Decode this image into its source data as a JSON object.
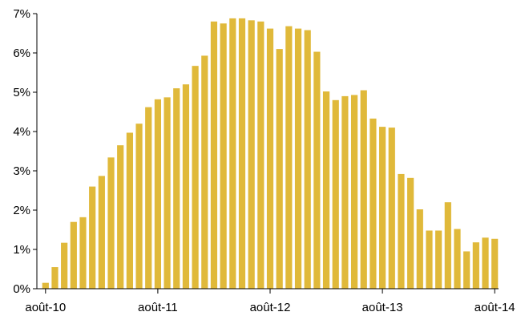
{
  "colors": {
    "bar": "#E0B93A",
    "axis": "#000000"
  },
  "chart_data": {
    "type": "bar",
    "title": "",
    "xlabel": "",
    "ylabel": "",
    "ylim": [
      0,
      7
    ],
    "y_unit": "percent",
    "y_ticks": [
      0,
      1,
      2,
      3,
      4,
      5,
      6,
      7
    ],
    "y_tick_labels": [
      "0%",
      "1%",
      "2%",
      "3%",
      "4%",
      "5%",
      "6%",
      "7%"
    ],
    "x_tick_labels": [
      "août-10",
      "août-11",
      "août-12",
      "août-13",
      "août-14"
    ],
    "x_tick_label_bar_index": [
      0,
      12,
      24,
      36,
      48
    ],
    "categories": [
      "2010-08",
      "2010-09",
      "2010-10",
      "2010-11",
      "2010-12",
      "2011-01",
      "2011-02",
      "2011-03",
      "2011-04",
      "2011-05",
      "2011-06",
      "2011-07",
      "2011-08",
      "2011-09",
      "2011-10",
      "2011-11",
      "2011-12",
      "2012-01",
      "2012-02",
      "2012-03",
      "2012-04",
      "2012-05",
      "2012-06",
      "2012-07",
      "2012-08",
      "2012-09",
      "2012-10",
      "2012-11",
      "2012-12",
      "2013-01",
      "2013-02",
      "2013-03",
      "2013-04",
      "2013-05",
      "2013-06",
      "2013-07",
      "2013-08",
      "2013-09",
      "2013-10",
      "2013-11",
      "2013-12",
      "2014-01",
      "2014-02",
      "2014-03",
      "2014-04",
      "2014-05",
      "2014-06",
      "2014-07",
      "2014-08"
    ],
    "values": [
      0.15,
      0.55,
      1.17,
      1.7,
      1.82,
      2.6,
      2.87,
      3.34,
      3.65,
      3.97,
      4.2,
      4.62,
      4.82,
      4.87,
      5.1,
      5.2,
      5.67,
      5.93,
      6.8,
      6.75,
      6.88,
      6.88,
      6.83,
      6.8,
      6.62,
      6.1,
      6.68,
      6.62,
      6.58,
      6.03,
      5.02,
      4.8,
      4.9,
      4.93,
      5.05,
      4.33,
      4.12,
      4.1,
      2.92,
      2.82,
      2.02,
      1.48,
      1.48,
      2.2,
      1.52,
      0.95,
      1.18,
      1.3,
      1.27
    ]
  }
}
